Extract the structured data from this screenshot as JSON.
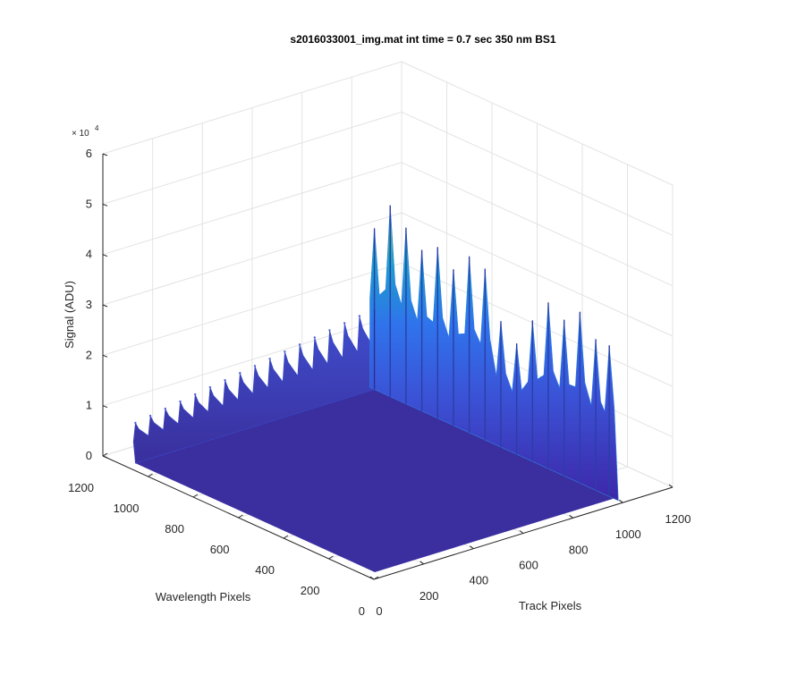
{
  "figure": {
    "title": "s2016033001_img.mat int time = 0.7 sec  350 nm BS1"
  },
  "chart_data": {
    "type": "surface",
    "title": "s2016033001_img.mat int time = 0.7 sec  350 nm BS1",
    "xlabel": "Track Pixels",
    "ylabel": "Wavelength Pixels",
    "zlabel": "Signal (ADU)",
    "z_exponent_label": "× 10",
    "z_exponent_power": "4",
    "xlim": [
      0,
      1200
    ],
    "ylim": [
      0,
      1200
    ],
    "zlim": [
      0,
      60000
    ],
    "x_ticks": [
      "0",
      "200",
      "400",
      "600",
      "800",
      "1000",
      "1200"
    ],
    "y_ticks": [
      "0",
      "200",
      "400",
      "600",
      "800",
      "1000",
      "1200"
    ],
    "z_ticks": [
      "0",
      "1",
      "2",
      "3",
      "4",
      "5",
      "6"
    ],
    "z_tick_values": [
      0,
      10000,
      20000,
      30000,
      40000,
      50000,
      60000
    ],
    "grid": true,
    "colormap": [
      "#3e26a8",
      "#4352d3",
      "#2f74ec",
      "#1593d4",
      "#20ab9f",
      "#4cbf6e",
      "#c5c13c"
    ],
    "edge_profile_track_at_max_wavelength": {
      "track": [
        40,
        100,
        160,
        220,
        280,
        340,
        400,
        460,
        520,
        580,
        640,
        700,
        760,
        820,
        880,
        940,
        1000
      ],
      "signal": [
        8000,
        8500,
        9000,
        9500,
        10000,
        10500,
        11000,
        11500,
        12000,
        12500,
        13000,
        13500,
        14000,
        14500,
        15000,
        15500,
        16000
      ]
    },
    "edge_profile_wavelength_at_max_track": {
      "wavelength": [
        60,
        120,
        190,
        260,
        330,
        400,
        470,
        540,
        610,
        680,
        750,
        820,
        890,
        960,
        1030,
        1100
      ],
      "signal": [
        30000,
        30000,
        34000,
        31000,
        33000,
        28000,
        22000,
        25000,
        34000,
        35000,
        31000,
        34000,
        32000,
        35000,
        38000,
        32000
      ]
    }
  }
}
